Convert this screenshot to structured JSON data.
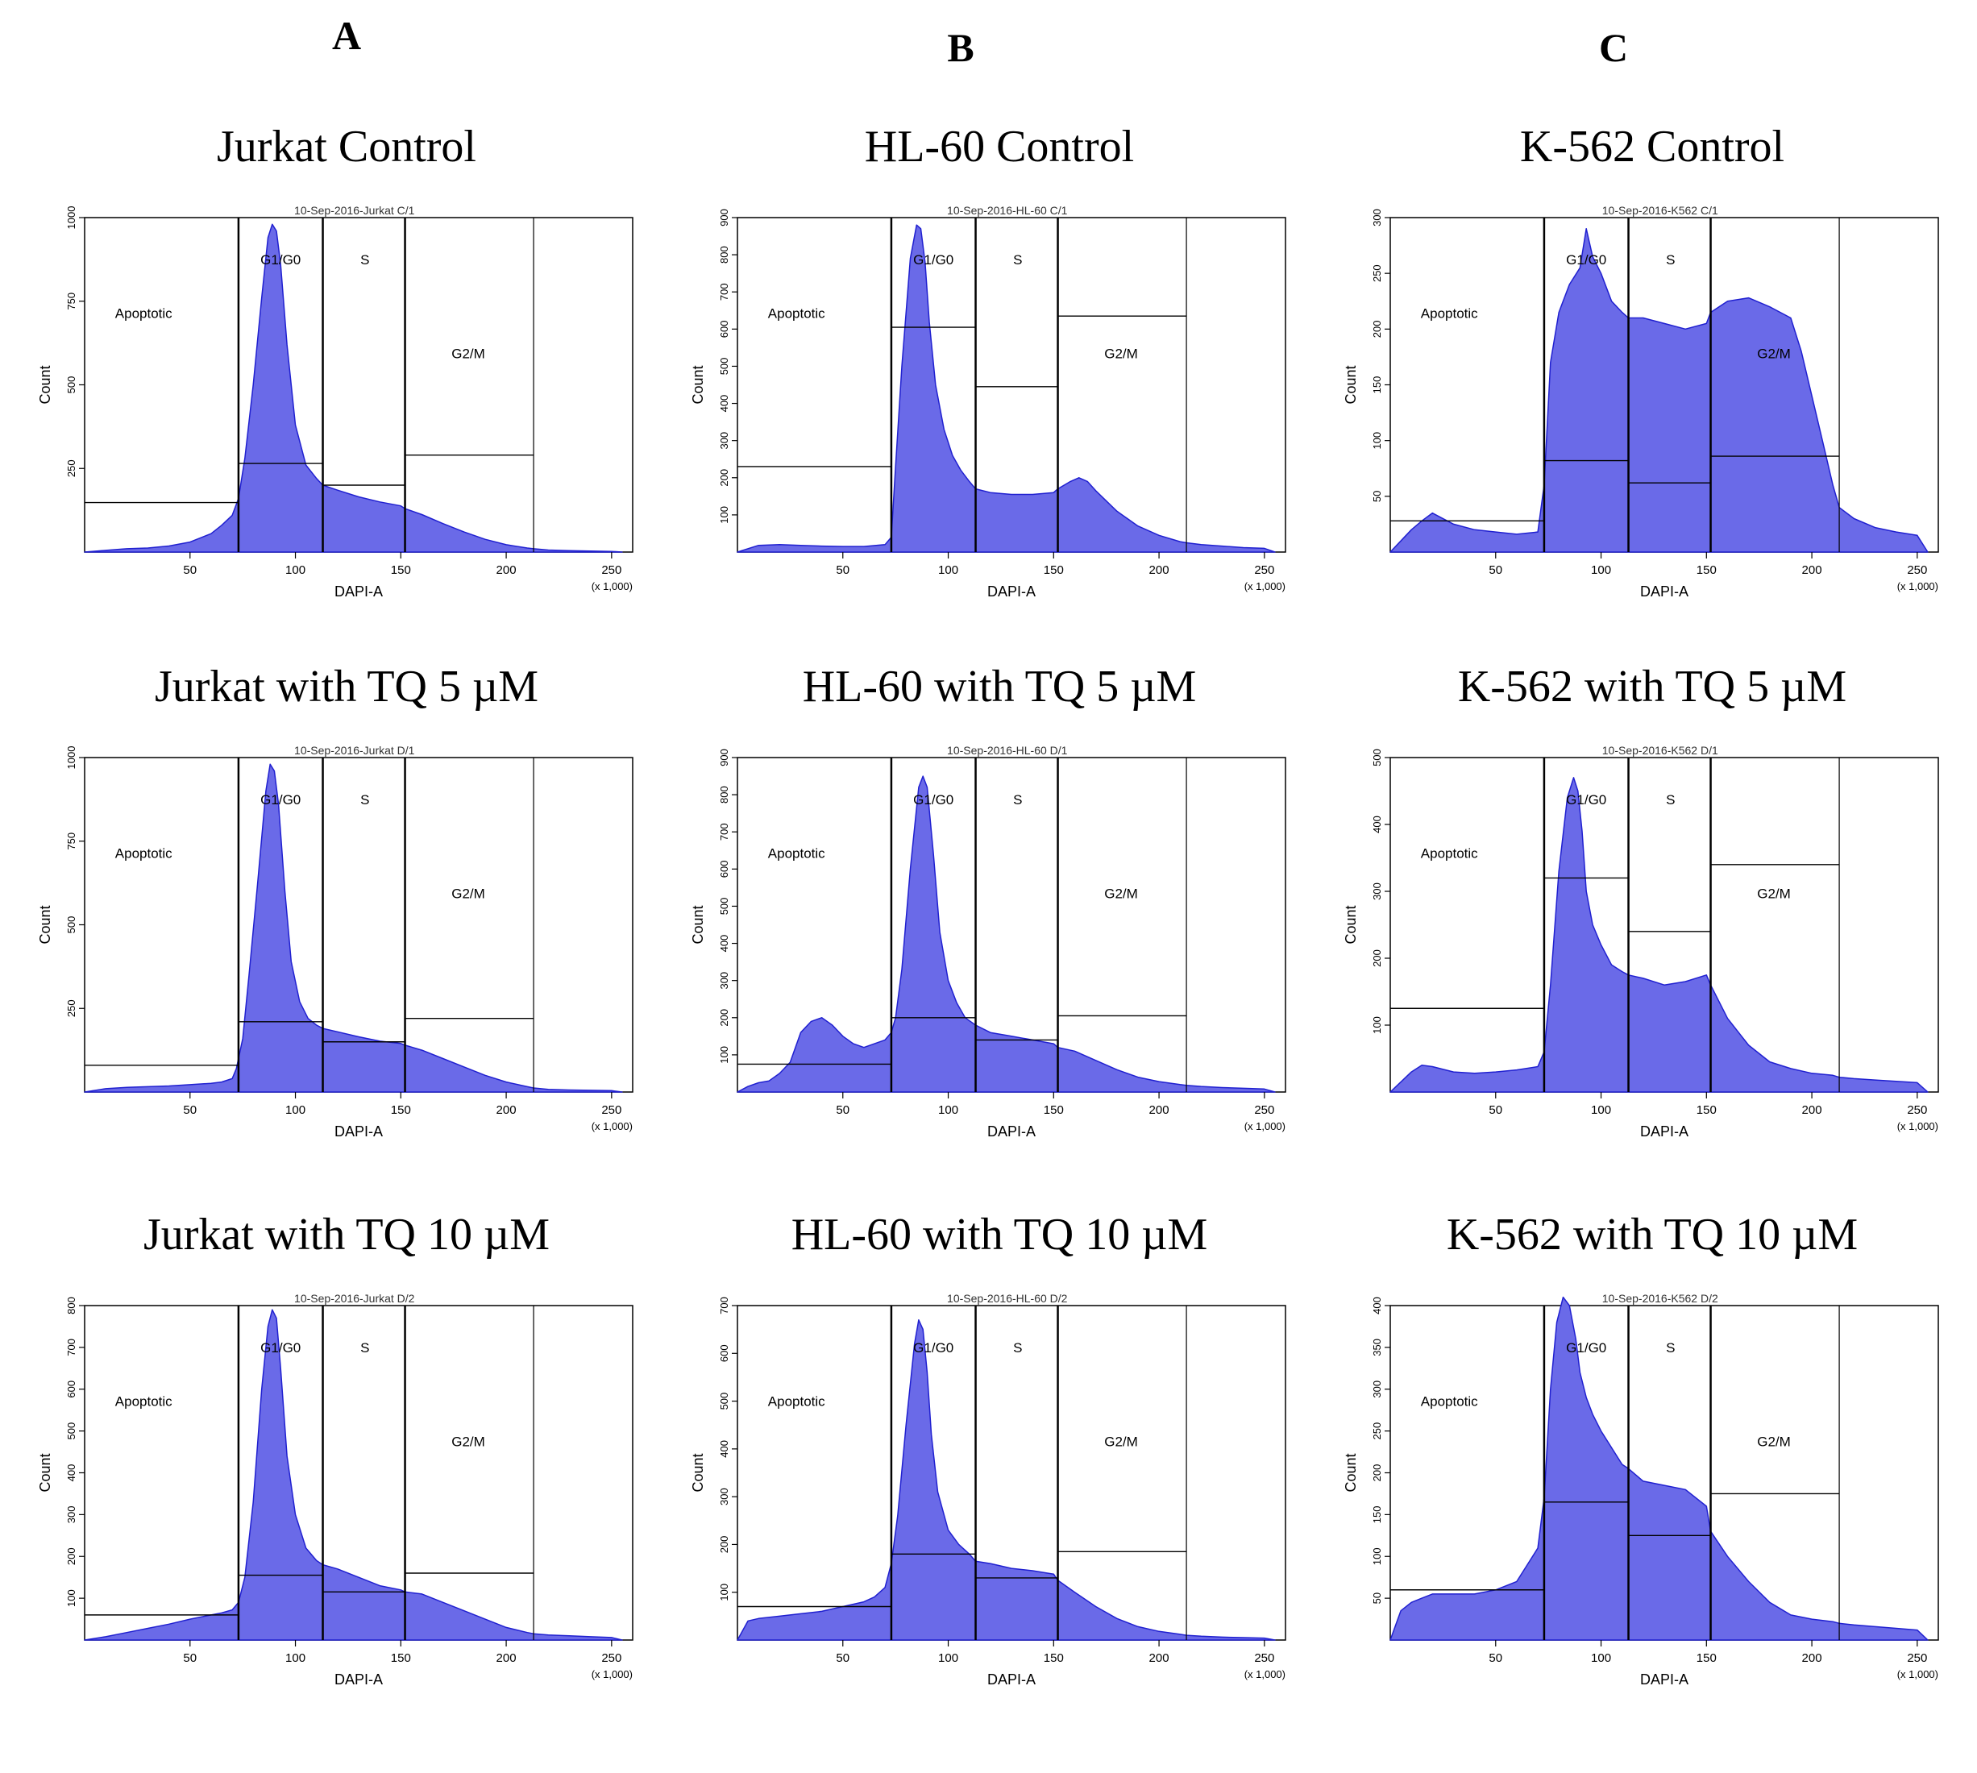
{
  "columns": [
    "A",
    "B",
    "C"
  ],
  "common": {
    "xlabel": "DAPI-A",
    "ylabel": "Count",
    "x_scale_note": "(x 1,000)",
    "x_ticks": [
      50,
      100,
      150,
      200,
      250
    ],
    "xlim": [
      0,
      260
    ],
    "gate_labels": {
      "apoptotic": "Apoptotic",
      "g1g0": "G1/G0",
      "s": "S",
      "g2m": "G2/M"
    },
    "gate_boundaries": [
      73,
      113,
      152,
      213
    ]
  },
  "chart_data": [
    {
      "type": "area",
      "column": "A",
      "title": "Jurkat Control",
      "header": "10-Sep-2016-Jurkat C/1",
      "ylim": [
        0,
        1000
      ],
      "y_ticks": [
        250,
        500,
        750,
        1000
      ],
      "x": [
        0,
        10,
        20,
        30,
        40,
        50,
        60,
        65,
        70,
        73,
        76,
        80,
        84,
        87,
        89,
        91,
        93,
        96,
        100,
        105,
        110,
        113,
        120,
        130,
        140,
        150,
        152,
        160,
        170,
        180,
        190,
        200,
        210,
        213,
        220,
        230,
        240,
        250,
        255
      ],
      "y": [
        0,
        5,
        10,
        12,
        18,
        30,
        55,
        80,
        110,
        160,
        280,
        500,
        760,
        940,
        980,
        960,
        860,
        620,
        380,
        260,
        220,
        200,
        185,
        165,
        150,
        138,
        130,
        112,
        85,
        60,
        38,
        22,
        12,
        10,
        6,
        4,
        3,
        2,
        0
      ],
      "gate_bars": [
        148,
        265,
        200,
        290
      ]
    },
    {
      "type": "area",
      "column": "B",
      "title": "HL-60 Control",
      "header": "10-Sep-2016-HL-60 C/1",
      "ylim": [
        0,
        900
      ],
      "y_ticks": [
        100,
        200,
        300,
        400,
        500,
        600,
        700,
        800,
        900
      ],
      "x": [
        0,
        10,
        20,
        30,
        40,
        50,
        60,
        70,
        73,
        75,
        78,
        82,
        85,
        87,
        89,
        91,
        94,
        98,
        102,
        106,
        110,
        113,
        120,
        130,
        140,
        150,
        152,
        158,
        162,
        166,
        170,
        180,
        190,
        200,
        210,
        213,
        220,
        230,
        240,
        250,
        255
      ],
      "y": [
        0,
        18,
        20,
        18,
        16,
        15,
        15,
        20,
        40,
        230,
        500,
        790,
        880,
        870,
        780,
        620,
        450,
        330,
        260,
        220,
        190,
        170,
        160,
        155,
        155,
        160,
        170,
        190,
        200,
        190,
        165,
        110,
        70,
        45,
        28,
        25,
        20,
        16,
        12,
        10,
        0
      ],
      "gate_bars": [
        230,
        605,
        445,
        635
      ]
    },
    {
      "type": "area",
      "column": "C",
      "title": "K-562 Control",
      "header": "10-Sep-2016-K562 C/1",
      "ylim": [
        0,
        300
      ],
      "y_ticks": [
        50,
        100,
        150,
        200,
        250,
        300
      ],
      "x": [
        0,
        5,
        10,
        15,
        20,
        30,
        40,
        50,
        60,
        70,
        73,
        76,
        80,
        85,
        90,
        93,
        96,
        100,
        105,
        110,
        113,
        120,
        130,
        140,
        150,
        152,
        160,
        170,
        180,
        190,
        195,
        200,
        205,
        210,
        213,
        220,
        230,
        240,
        250,
        255
      ],
      "y": [
        0,
        10,
        20,
        28,
        35,
        25,
        20,
        18,
        16,
        18,
        60,
        170,
        215,
        240,
        255,
        290,
        265,
        250,
        225,
        215,
        210,
        210,
        205,
        200,
        205,
        215,
        225,
        228,
        220,
        210,
        180,
        140,
        100,
        60,
        40,
        30,
        22,
        18,
        15,
        0
      ],
      "gate_bars": [
        28,
        82,
        62,
        86
      ]
    },
    {
      "type": "area",
      "column": "A",
      "title": "Jurkat with TQ 5 µM",
      "header": "10-Sep-2016-Jurkat D/1",
      "ylim": [
        0,
        1000
      ],
      "y_ticks": [
        250,
        500,
        750,
        1000
      ],
      "x": [
        0,
        10,
        20,
        30,
        40,
        50,
        60,
        65,
        70,
        72,
        75,
        78,
        82,
        86,
        88,
        90,
        92,
        95,
        98,
        102,
        106,
        110,
        113,
        120,
        130,
        140,
        150,
        152,
        160,
        170,
        180,
        190,
        200,
        210,
        213,
        220,
        230,
        240,
        250,
        255
      ],
      "y": [
        0,
        10,
        14,
        16,
        18,
        22,
        26,
        30,
        40,
        70,
        160,
        350,
        620,
        900,
        980,
        960,
        860,
        600,
        390,
        270,
        220,
        200,
        190,
        180,
        165,
        152,
        145,
        140,
        125,
        100,
        75,
        50,
        30,
        16,
        12,
        8,
        6,
        5,
        4,
        0
      ],
      "gate_bars": [
        80,
        210,
        150,
        220
      ]
    },
    {
      "type": "area",
      "column": "B",
      "title": "HL-60 with TQ 5 µM",
      "header": "10-Sep-2016-HL-60 D/1",
      "ylim": [
        0,
        900
      ],
      "y_ticks": [
        100,
        200,
        300,
        400,
        500,
        600,
        700,
        800,
        900
      ],
      "x": [
        0,
        5,
        10,
        15,
        20,
        25,
        30,
        35,
        40,
        45,
        50,
        55,
        60,
        65,
        70,
        73,
        75,
        78,
        82,
        86,
        88,
        90,
        93,
        96,
        100,
        104,
        108,
        113,
        120,
        130,
        140,
        150,
        152,
        160,
        170,
        180,
        190,
        200,
        210,
        213,
        220,
        230,
        240,
        250,
        255
      ],
      "y": [
        0,
        15,
        25,
        30,
        50,
        80,
        160,
        190,
        200,
        180,
        150,
        130,
        120,
        130,
        140,
        160,
        200,
        330,
        600,
        820,
        850,
        820,
        640,
        430,
        300,
        240,
        200,
        180,
        160,
        150,
        140,
        130,
        120,
        110,
        85,
        60,
        40,
        28,
        20,
        18,
        15,
        12,
        10,
        8,
        0
      ],
      "gate_bars": [
        75,
        200,
        140,
        205
      ]
    },
    {
      "type": "area",
      "column": "C",
      "title": "K-562 with TQ 5 µM",
      "header": "10-Sep-2016-K562 D/1",
      "ylim": [
        0,
        500
      ],
      "y_ticks": [
        100,
        200,
        300,
        400,
        500
      ],
      "x": [
        0,
        5,
        10,
        15,
        20,
        30,
        40,
        50,
        60,
        70,
        73,
        76,
        80,
        84,
        87,
        89,
        91,
        93,
        96,
        100,
        105,
        110,
        113,
        120,
        130,
        140,
        150,
        152,
        160,
        170,
        180,
        190,
        200,
        210,
        213,
        220,
        230,
        240,
        250,
        255
      ],
      "y": [
        0,
        15,
        30,
        40,
        38,
        30,
        28,
        30,
        33,
        38,
        60,
        160,
        330,
        440,
        470,
        450,
        390,
        300,
        250,
        220,
        190,
        180,
        175,
        170,
        160,
        165,
        175,
        160,
        110,
        70,
        45,
        35,
        28,
        25,
        22,
        20,
        18,
        16,
        14,
        0
      ],
      "gate_bars": [
        125,
        320,
        240,
        340
      ]
    },
    {
      "type": "area",
      "column": "A",
      "title": "Jurkat with TQ 10 µM",
      "header": "10-Sep-2016-Jurkat D/2",
      "ylim": [
        0,
        800
      ],
      "y_ticks": [
        100,
        200,
        300,
        400,
        500,
        600,
        700,
        800
      ],
      "x": [
        0,
        10,
        20,
        30,
        40,
        50,
        60,
        65,
        70,
        73,
        76,
        80,
        84,
        87,
        89,
        91,
        93,
        96,
        100,
        105,
        110,
        113,
        120,
        130,
        140,
        150,
        152,
        160,
        170,
        180,
        190,
        200,
        210,
        213,
        220,
        230,
        240,
        250,
        255
      ],
      "y": [
        0,
        8,
        18,
        28,
        38,
        50,
        60,
        65,
        72,
        90,
        150,
        330,
        600,
        750,
        790,
        770,
        650,
        440,
        300,
        220,
        190,
        180,
        170,
        150,
        130,
        120,
        115,
        110,
        90,
        70,
        50,
        30,
        18,
        15,
        12,
        10,
        8,
        6,
        0
      ],
      "gate_bars": [
        60,
        155,
        115,
        160
      ]
    },
    {
      "type": "area",
      "column": "B",
      "title": "HL-60 with TQ 10 µM",
      "header": "10-Sep-2016-HL-60 D/2",
      "ylim": [
        0,
        700
      ],
      "y_ticks": [
        100,
        200,
        300,
        400,
        500,
        600,
        700
      ],
      "x": [
        0,
        5,
        10,
        20,
        30,
        40,
        50,
        60,
        65,
        70,
        73,
        76,
        80,
        84,
        86,
        88,
        90,
        92,
        95,
        100,
        105,
        110,
        113,
        120,
        130,
        140,
        150,
        152,
        160,
        170,
        180,
        190,
        200,
        210,
        213,
        220,
        230,
        240,
        250,
        255
      ],
      "y": [
        0,
        40,
        45,
        50,
        55,
        60,
        70,
        80,
        90,
        110,
        160,
        260,
        450,
        620,
        670,
        650,
        560,
        430,
        310,
        230,
        200,
        180,
        165,
        160,
        150,
        145,
        138,
        125,
        100,
        70,
        45,
        28,
        18,
        12,
        10,
        8,
        6,
        5,
        4,
        0
      ],
      "gate_bars": [
        70,
        180,
        130,
        185
      ]
    },
    {
      "type": "area",
      "column": "C",
      "title": "K-562 with TQ 10 µM",
      "header": "10-Sep-2016-K562 D/2",
      "ylim": [
        0,
        400
      ],
      "y_ticks": [
        50,
        100,
        150,
        200,
        250,
        300,
        350,
        400
      ],
      "x": [
        0,
        5,
        10,
        15,
        20,
        30,
        40,
        50,
        60,
        70,
        73,
        76,
        79,
        82,
        85,
        88,
        90,
        93,
        96,
        100,
        105,
        110,
        113,
        120,
        130,
        140,
        150,
        152,
        160,
        170,
        180,
        190,
        200,
        210,
        213,
        220,
        230,
        240,
        250,
        255
      ],
      "y": [
        0,
        35,
        45,
        50,
        55,
        55,
        55,
        60,
        70,
        110,
        170,
        300,
        380,
        410,
        400,
        360,
        320,
        290,
        270,
        250,
        230,
        210,
        205,
        190,
        185,
        180,
        160,
        130,
        100,
        70,
        45,
        30,
        25,
        22,
        20,
        18,
        16,
        14,
        12,
        0
      ],
      "gate_bars": [
        60,
        165,
        125,
        175
      ]
    }
  ]
}
